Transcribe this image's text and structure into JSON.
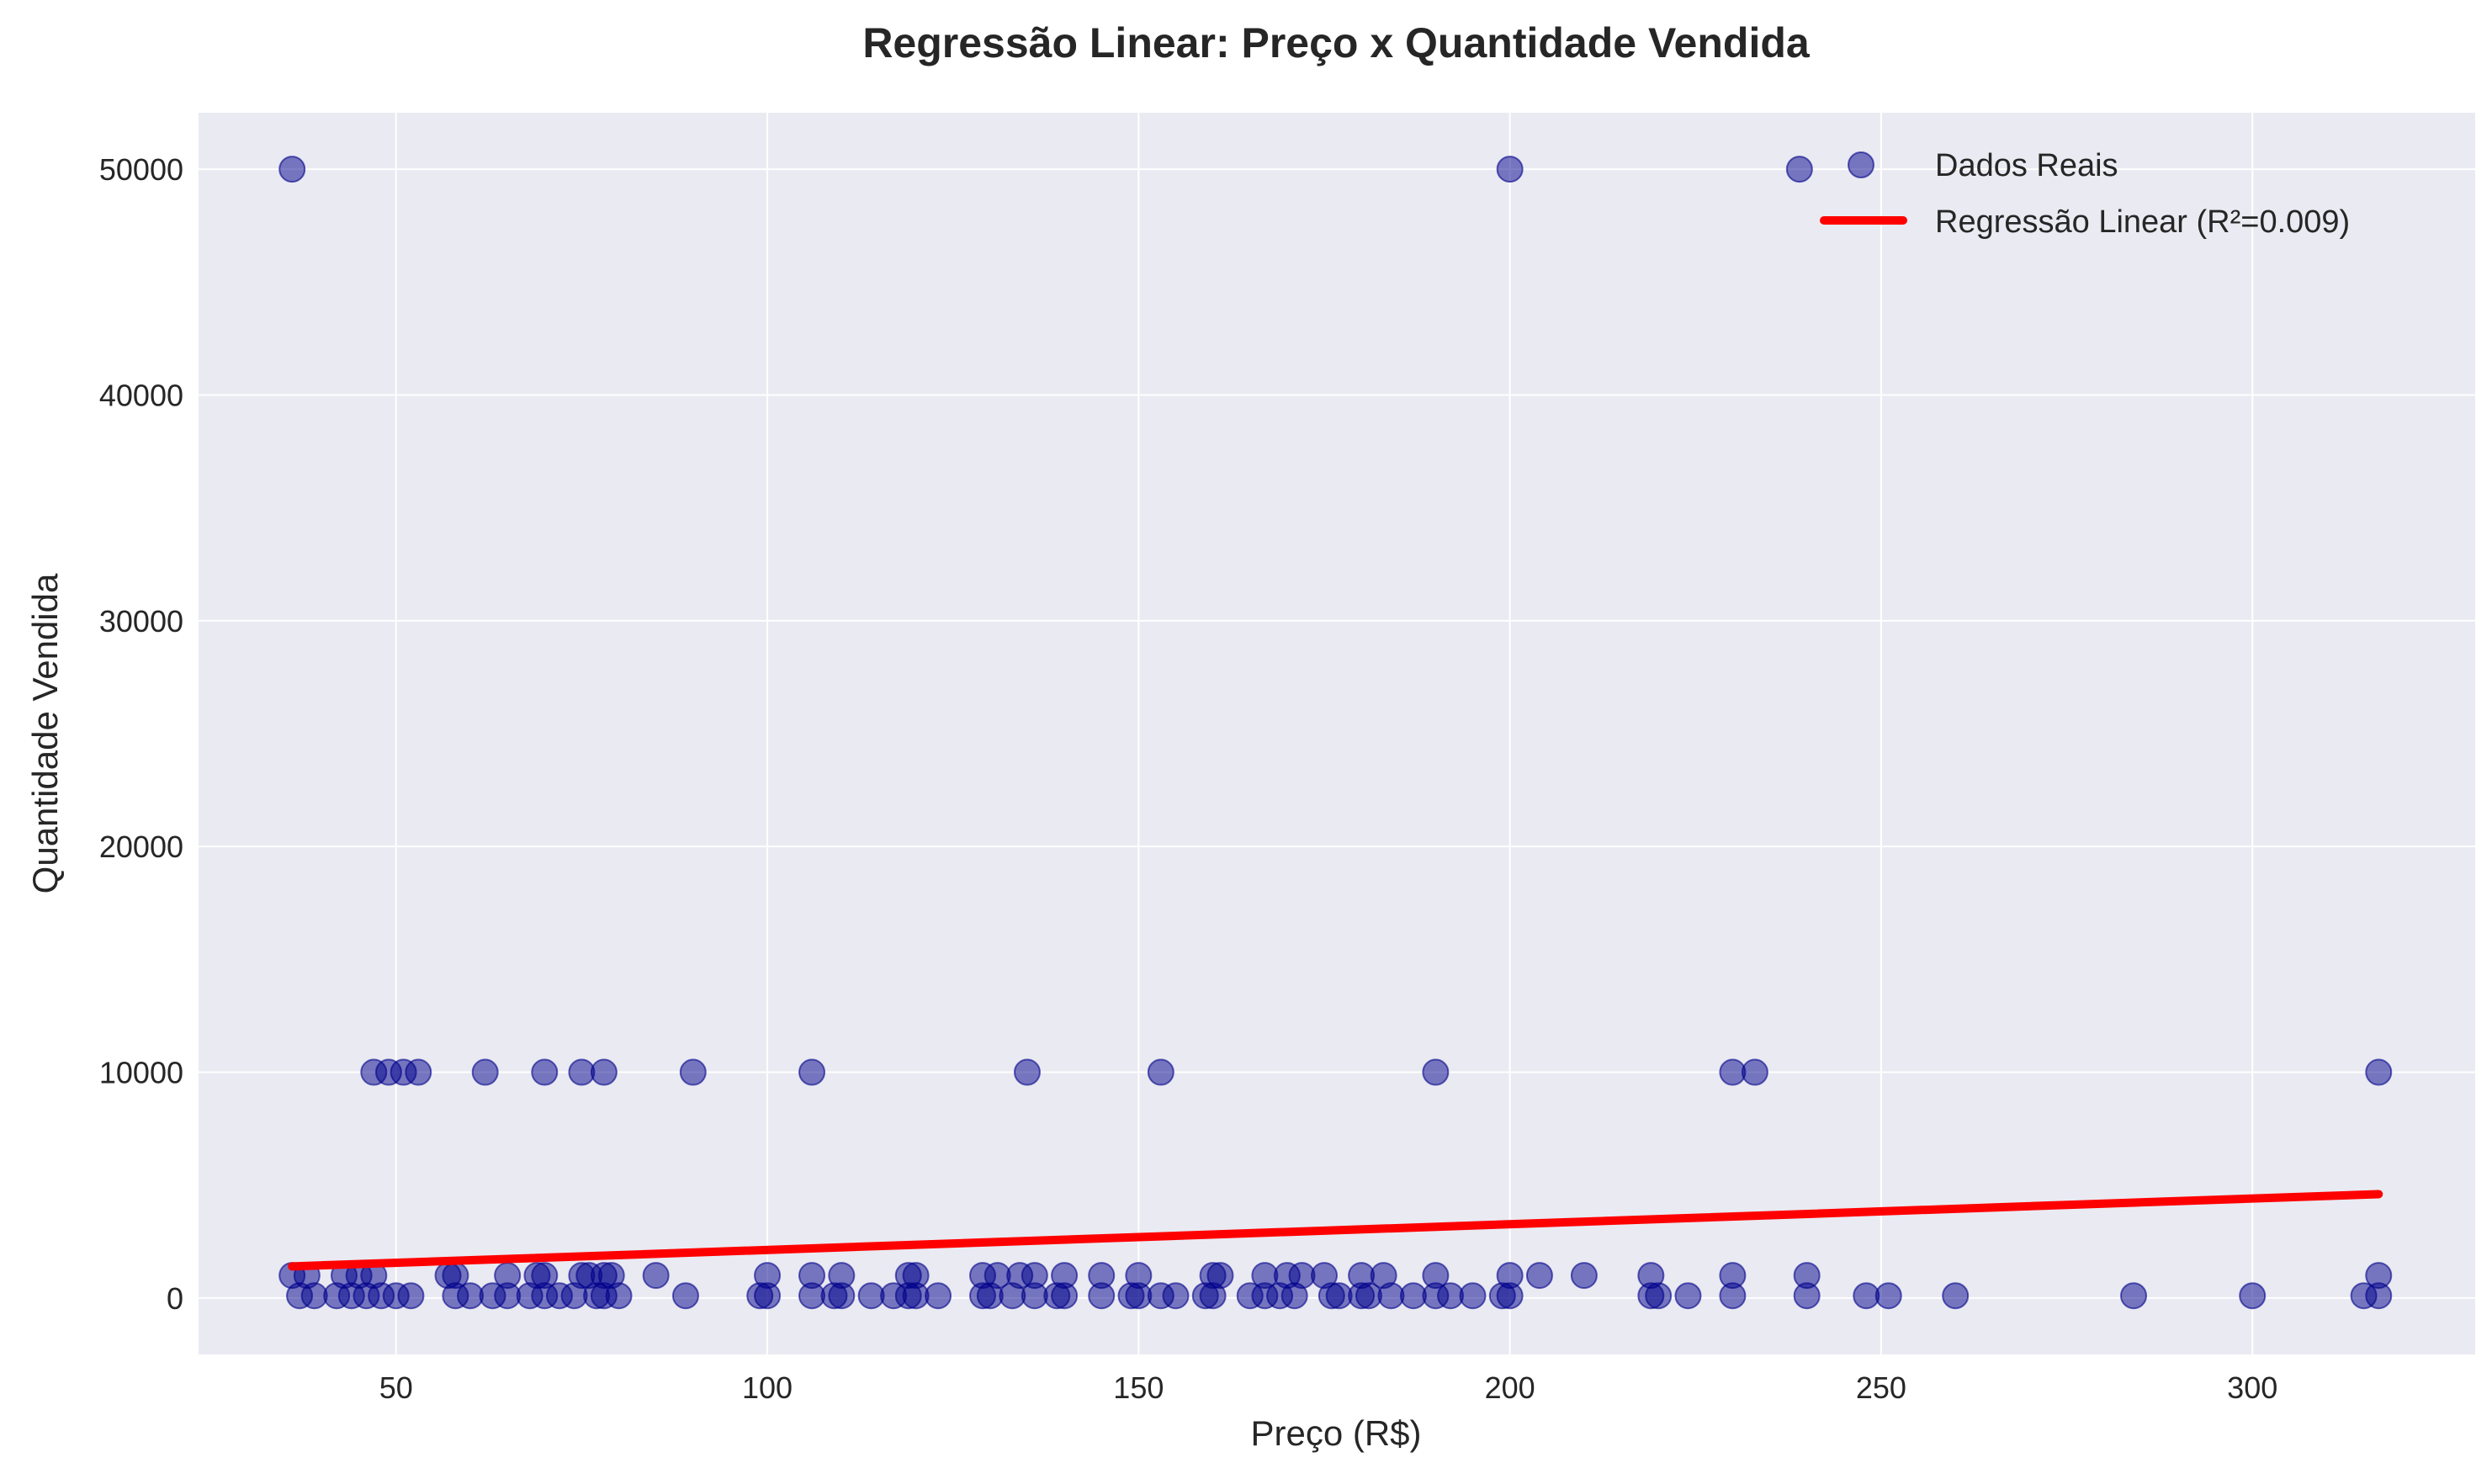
{
  "chart_data": {
    "type": "scatter",
    "title": "Regressão Linear: Preço x Quantidade Vendida",
    "xlabel": "Preço (R$)",
    "ylabel": "Quantidade Vendida",
    "xlim": [
      23.4,
      330
    ],
    "ylim": [
      -2500,
      52500
    ],
    "xticks": [
      50,
      100,
      150,
      200,
      250,
      300
    ],
    "yticks": [
      0,
      10000,
      20000,
      30000,
      40000,
      50000
    ],
    "grid": true,
    "legend_position": "top-right",
    "colors": {
      "points": "#00008b",
      "line": "#ff0000",
      "plot_background": "#eaeaf2",
      "grid": "#ffffff"
    },
    "series": [
      {
        "name": "Dados Reais",
        "kind": "scatter",
        "points": [
          [
            36,
            50000
          ],
          [
            200,
            50000
          ],
          [
            239,
            50000
          ],
          [
            47,
            10000
          ],
          [
            49,
            10000
          ],
          [
            51,
            10000
          ],
          [
            53,
            10000
          ],
          [
            62,
            10000
          ],
          [
            70,
            10000
          ],
          [
            75,
            10000
          ],
          [
            78,
            10000
          ],
          [
            90,
            10000
          ],
          [
            106,
            10000
          ],
          [
            135,
            10000
          ],
          [
            153,
            10000
          ],
          [
            190,
            10000
          ],
          [
            230,
            10000
          ],
          [
            233,
            10000
          ],
          [
            317,
            10000
          ],
          [
            36,
            1000
          ],
          [
            38,
            1000
          ],
          [
            43,
            1000
          ],
          [
            45,
            1000
          ],
          [
            47,
            1000
          ],
          [
            57,
            1000
          ],
          [
            58,
            1000
          ],
          [
            65,
            1000
          ],
          [
            69,
            1000
          ],
          [
            70,
            1000
          ],
          [
            75,
            1000
          ],
          [
            76,
            1000
          ],
          [
            78,
            1000
          ],
          [
            79,
            1000
          ],
          [
            85,
            1000
          ],
          [
            100,
            1000
          ],
          [
            106,
            1000
          ],
          [
            110,
            1000
          ],
          [
            119,
            1000
          ],
          [
            120,
            1000
          ],
          [
            129,
            1000
          ],
          [
            131,
            1000
          ],
          [
            134,
            1000
          ],
          [
            136,
            1000
          ],
          [
            140,
            1000
          ],
          [
            145,
            1000
          ],
          [
            150,
            1000
          ],
          [
            160,
            1000
          ],
          [
            161,
            1000
          ],
          [
            167,
            1000
          ],
          [
            170,
            1000
          ],
          [
            172,
            1000
          ],
          [
            175,
            1000
          ],
          [
            180,
            1000
          ],
          [
            183,
            1000
          ],
          [
            190,
            1000
          ],
          [
            200,
            1000
          ],
          [
            204,
            1000
          ],
          [
            210,
            1000
          ],
          [
            219,
            1000
          ],
          [
            230,
            1000
          ],
          [
            240,
            1000
          ],
          [
            317,
            1000
          ],
          [
            37,
            100
          ],
          [
            39,
            100
          ],
          [
            42,
            100
          ],
          [
            44,
            100
          ],
          [
            46,
            100
          ],
          [
            48,
            100
          ],
          [
            50,
            100
          ],
          [
            52,
            100
          ],
          [
            58,
            100
          ],
          [
            60,
            100
          ],
          [
            63,
            100
          ],
          [
            65,
            100
          ],
          [
            68,
            100
          ],
          [
            70,
            100
          ],
          [
            72,
            100
          ],
          [
            74,
            100
          ],
          [
            77,
            100
          ],
          [
            78,
            100
          ],
          [
            80,
            100
          ],
          [
            89,
            100
          ],
          [
            99,
            100
          ],
          [
            100,
            100
          ],
          [
            106,
            100
          ],
          [
            109,
            100
          ],
          [
            110,
            100
          ],
          [
            114,
            100
          ],
          [
            117,
            100
          ],
          [
            119,
            100
          ],
          [
            120,
            100
          ],
          [
            123,
            100
          ],
          [
            129,
            100
          ],
          [
            130,
            100
          ],
          [
            133,
            100
          ],
          [
            136,
            100
          ],
          [
            139,
            100
          ],
          [
            140,
            100
          ],
          [
            145,
            100
          ],
          [
            149,
            100
          ],
          [
            150,
            100
          ],
          [
            153,
            100
          ],
          [
            155,
            100
          ],
          [
            159,
            100
          ],
          [
            160,
            100
          ],
          [
            165,
            100
          ],
          [
            167,
            100
          ],
          [
            169,
            100
          ],
          [
            171,
            100
          ],
          [
            176,
            100
          ],
          [
            177,
            100
          ],
          [
            180,
            100
          ],
          [
            181,
            100
          ],
          [
            184,
            100
          ],
          [
            187,
            100
          ],
          [
            190,
            100
          ],
          [
            192,
            100
          ],
          [
            195,
            100
          ],
          [
            199,
            100
          ],
          [
            200,
            100
          ],
          [
            219,
            100
          ],
          [
            220,
            100
          ],
          [
            224,
            100
          ],
          [
            230,
            100
          ],
          [
            240,
            100
          ],
          [
            248,
            100
          ],
          [
            251,
            100
          ],
          [
            260,
            100
          ],
          [
            284,
            100
          ],
          [
            300,
            100
          ],
          [
            315,
            100
          ],
          [
            317,
            100
          ]
        ]
      },
      {
        "name": "Regressão Linear (R²=0.009)",
        "kind": "line",
        "x": [
          36,
          317
        ],
        "y": [
          1400,
          4600
        ]
      }
    ]
  }
}
